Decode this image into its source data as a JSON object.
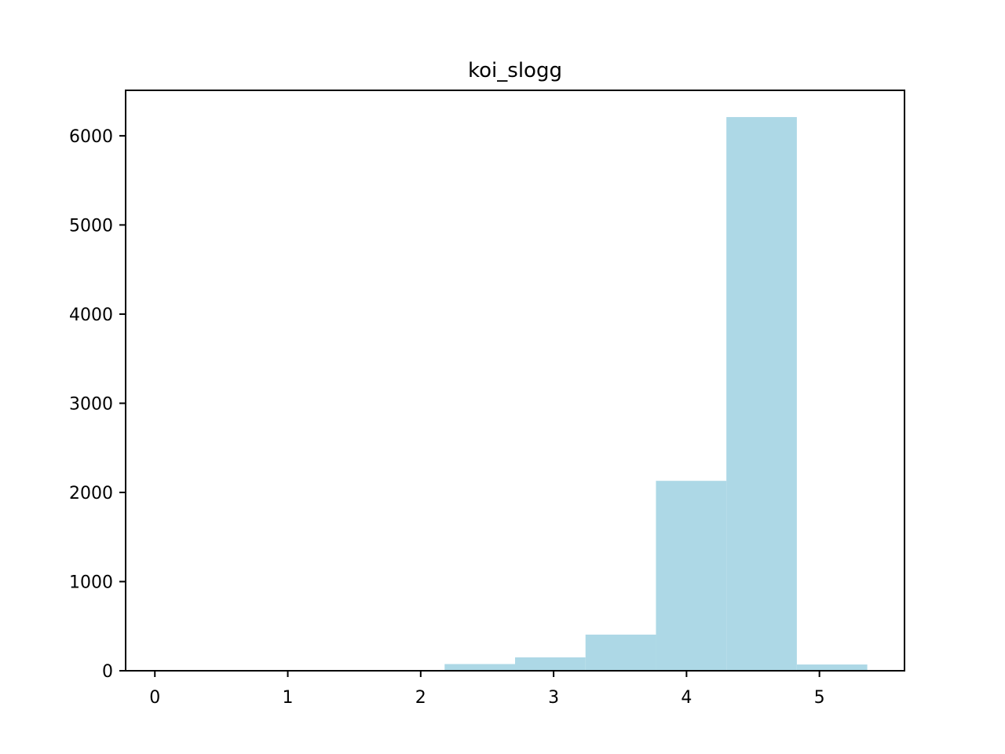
{
  "chart_data": {
    "type": "bar",
    "title": "koi_slogg",
    "xlabel": "",
    "ylabel": "",
    "bar_color": "#add8e6",
    "xlim": [
      -0.22,
      5.64
    ],
    "ylim": [
      0,
      6510
    ],
    "x_ticks": [
      0,
      1,
      2,
      3,
      4,
      5
    ],
    "x_tick_labels": [
      "0",
      "1",
      "2",
      "3",
      "4",
      "5"
    ],
    "y_ticks": [
      0,
      1000,
      2000,
      3000,
      4000,
      5000,
      6000
    ],
    "y_tick_labels": [
      "0",
      "1000",
      "2000",
      "3000",
      "4000",
      "5000",
      "6000"
    ],
    "bins": [
      {
        "x0": 0.05,
        "x1": 0.58,
        "count": 0
      },
      {
        "x0": 0.58,
        "x1": 1.11,
        "count": 0
      },
      {
        "x0": 1.11,
        "x1": 1.65,
        "count": 0
      },
      {
        "x0": 1.65,
        "x1": 2.18,
        "count": 0
      },
      {
        "x0": 2.18,
        "x1": 2.71,
        "count": 75
      },
      {
        "x0": 2.71,
        "x1": 3.24,
        "count": 150
      },
      {
        "x0": 3.24,
        "x1": 3.77,
        "count": 405
      },
      {
        "x0": 3.77,
        "x1": 4.3,
        "count": 2130
      },
      {
        "x0": 4.3,
        "x1": 4.83,
        "count": 6210
      },
      {
        "x0": 4.83,
        "x1": 5.36,
        "count": 70
      }
    ],
    "grid": false,
    "legend": "none"
  }
}
